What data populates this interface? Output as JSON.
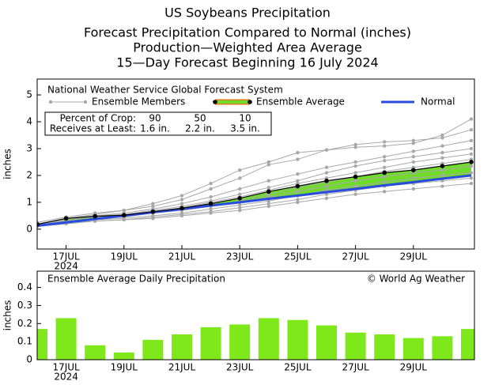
{
  "chart_data": [
    {
      "type": "line",
      "title": "US Soybeans Precipitation",
      "subtitle": [
        "Forecast Precipitation Compared to Normal (inches)",
        "Production—Weighted Area Average",
        "15—Day Forecast Beginning 16 July 2024"
      ],
      "ylabel": "inches",
      "categories": [
        null,
        "17JUL",
        null,
        "19JUL",
        null,
        "21JUL",
        null,
        "23JUL",
        null,
        "25JUL",
        null,
        "27JUL",
        null,
        "29JUL",
        null,
        null
      ],
      "x_sublabel": "2024",
      "ylim": [
        -0.74,
        5.59
      ],
      "yticks": [
        0,
        1,
        2,
        3,
        4,
        5
      ],
      "legend_title": "National Weather Service Global Forecast System",
      "ensemble": {
        "name": "Ensemble Members",
        "color": "#a8a8a8",
        "members": [
          [
            0.25,
            0.45,
            0.6,
            0.7,
            0.95,
            1.25,
            1.7,
            2.2,
            2.5,
            2.85,
            2.95,
            3.05,
            3.1,
            3.2,
            3.5,
            4.1
          ],
          [
            0.2,
            0.4,
            0.55,
            0.7,
            0.85,
            1.1,
            1.5,
            1.9,
            2.4,
            2.6,
            2.95,
            3.15,
            3.25,
            3.3,
            3.4,
            3.7
          ],
          [
            0.2,
            0.35,
            0.5,
            0.6,
            0.75,
            0.95,
            1.2,
            1.5,
            1.8,
            2.05,
            2.3,
            2.5,
            2.7,
            2.9,
            3.1,
            3.3
          ],
          [
            0.15,
            0.4,
            0.5,
            0.55,
            0.7,
            0.85,
            1.05,
            1.3,
            1.55,
            1.8,
            2.1,
            2.35,
            2.55,
            2.7,
            2.85,
            3.0
          ],
          [
            0.2,
            0.35,
            0.45,
            0.5,
            0.65,
            0.8,
            1.0,
            1.2,
            1.45,
            1.7,
            1.9,
            2.1,
            2.3,
            2.5,
            2.65,
            2.8
          ],
          [
            0.2,
            0.3,
            0.4,
            0.45,
            0.6,
            0.7,
            0.85,
            1.05,
            1.3,
            1.55,
            1.75,
            1.95,
            2.15,
            2.3,
            2.45,
            2.6
          ],
          [
            0.15,
            0.3,
            0.4,
            0.5,
            0.6,
            0.75,
            0.9,
            1.0,
            1.2,
            1.4,
            1.6,
            1.8,
            1.95,
            2.1,
            2.2,
            2.35
          ],
          [
            0.15,
            0.25,
            0.35,
            0.4,
            0.5,
            0.6,
            0.75,
            0.9,
            1.05,
            1.25,
            1.45,
            1.6,
            1.75,
            1.9,
            2.0,
            2.1
          ],
          [
            0.1,
            0.25,
            0.3,
            0.35,
            0.45,
            0.55,
            0.65,
            0.8,
            0.95,
            1.1,
            1.3,
            1.45,
            1.6,
            1.7,
            1.8,
            1.9
          ],
          [
            0.1,
            0.2,
            0.3,
            0.35,
            0.4,
            0.5,
            0.6,
            0.7,
            0.85,
            1.0,
            1.15,
            1.3,
            1.4,
            1.5,
            1.6,
            1.7
          ]
        ]
      },
      "series": [
        {
          "name": "Ensemble Average",
          "color": "#000000",
          "fill_color": "#6fdc2a",
          "values": [
            0.18,
            0.4,
            0.48,
            0.52,
            0.65,
            0.78,
            0.95,
            1.15,
            1.4,
            1.6,
            1.8,
            1.95,
            2.1,
            2.2,
            2.35,
            2.5
          ]
        },
        {
          "name": "Normal",
          "color": "#2a4be0",
          "values": [
            0.13,
            0.25,
            0.38,
            0.5,
            0.63,
            0.75,
            0.88,
            1.0,
            1.13,
            1.25,
            1.38,
            1.5,
            1.63,
            1.75,
            1.88,
            2.0
          ]
        }
      ],
      "crop_table": {
        "percent_label": "Percent of Crop:",
        "percents": [
          90,
          50,
          10
        ],
        "amount_label": "Receives at Least:",
        "amounts": [
          "1.6 in.",
          "2.2 in.",
          "3.5 in."
        ]
      }
    },
    {
      "type": "bar",
      "title": "Ensemble Average Daily Precipitation",
      "annotation": "© World Ag Weather",
      "ylabel": "inches",
      "categories": [
        null,
        "17JUL",
        null,
        "19JUL",
        null,
        "21JUL",
        null,
        "23JUL",
        null,
        "25JUL",
        null,
        "27JUL",
        null,
        "29JUL",
        null,
        null
      ],
      "x_sublabel": "2024",
      "values": [
        0.17,
        0.23,
        0.08,
        0.04,
        0.11,
        0.14,
        0.18,
        0.195,
        0.23,
        0.22,
        0.19,
        0.15,
        0.14,
        0.12,
        0.13,
        0.17
      ],
      "color": "#7ee81a",
      "ylim": [
        0,
        0.49
      ],
      "yticks": [
        0,
        0.1,
        0.2,
        0.3,
        0.4
      ]
    }
  ]
}
